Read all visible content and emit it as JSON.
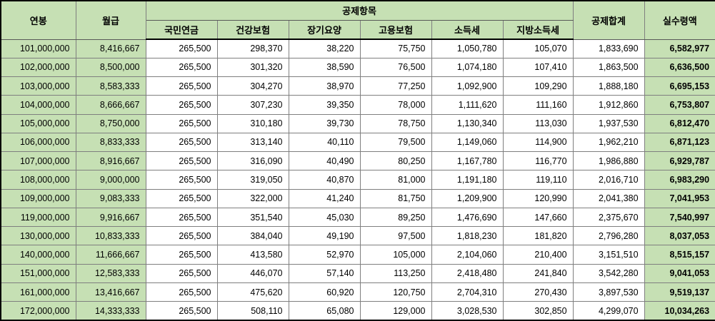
{
  "colors": {
    "header_bg": "#c6e0b4",
    "label_col_bg": "#c6e0b4",
    "net_col_bg": "#c6e0b4",
    "grid_border": "#7f7f7f",
    "outer_border": "#000000",
    "cell_bg": "#ffffff",
    "text": "#000000"
  },
  "table": {
    "header": {
      "annual_salary": "연봉",
      "monthly_salary": "월급",
      "deductions_group": "공제항목",
      "sub": [
        "국민연금",
        "건강보험",
        "장기요양",
        "고용보험",
        "소득세",
        "지방소득세"
      ],
      "deduction_total": "공제합계",
      "net_pay": "실수령액"
    }
  },
  "chart_data": {
    "type": "table",
    "title": "",
    "columns": [
      "연봉",
      "월급",
      "국민연금",
      "건강보험",
      "장기요양",
      "고용보험",
      "소득세",
      "지방소득세",
      "공제합계",
      "실수령액"
    ],
    "column_group": {
      "label": "공제항목",
      "spans_columns": [
        "국민연금",
        "건강보험",
        "장기요양",
        "고용보험",
        "소득세",
        "지방소득세"
      ]
    },
    "rows": [
      [
        101000000,
        8416667,
        265500,
        298370,
        38220,
        75750,
        1050780,
        105070,
        1833690,
        6582977
      ],
      [
        102000000,
        8500000,
        265500,
        301320,
        38590,
        76500,
        1074180,
        107410,
        1863500,
        6636500
      ],
      [
        103000000,
        8583333,
        265500,
        304270,
        38970,
        77250,
        1092900,
        109290,
        1888180,
        6695153
      ],
      [
        104000000,
        8666667,
        265500,
        307230,
        39350,
        78000,
        1111620,
        111160,
        1912860,
        6753807
      ],
      [
        105000000,
        8750000,
        265500,
        310180,
        39730,
        78750,
        1130340,
        113030,
        1937530,
        6812470
      ],
      [
        106000000,
        8833333,
        265500,
        313140,
        40110,
        79500,
        1149060,
        114900,
        1962210,
        6871123
      ],
      [
        107000000,
        8916667,
        265500,
        316090,
        40490,
        80250,
        1167780,
        116770,
        1986880,
        6929787
      ],
      [
        108000000,
        9000000,
        265500,
        319050,
        40870,
        81000,
        1191180,
        119110,
        2016710,
        6983290
      ],
      [
        109000000,
        9083333,
        265500,
        322000,
        41240,
        81750,
        1209900,
        120990,
        2041380,
        7041953
      ],
      [
        119000000,
        9916667,
        265500,
        351540,
        45030,
        89250,
        1476690,
        147660,
        2375670,
        7540997
      ],
      [
        130000000,
        10833333,
        265500,
        384040,
        49190,
        97500,
        1818230,
        181820,
        2796280,
        8037053
      ],
      [
        140000000,
        11666667,
        265500,
        413580,
        52970,
        105000,
        2104060,
        210400,
        3151510,
        8515157
      ],
      [
        151000000,
        12583333,
        265500,
        446070,
        57140,
        113250,
        2418480,
        241840,
        3542280,
        9041053
      ],
      [
        161000000,
        13416667,
        265500,
        475620,
        60920,
        120750,
        2704310,
        270430,
        3897530,
        9519137
      ],
      [
        172000000,
        14333333,
        265500,
        508110,
        65080,
        129000,
        3028530,
        302850,
        4299070,
        10034263
      ]
    ]
  }
}
